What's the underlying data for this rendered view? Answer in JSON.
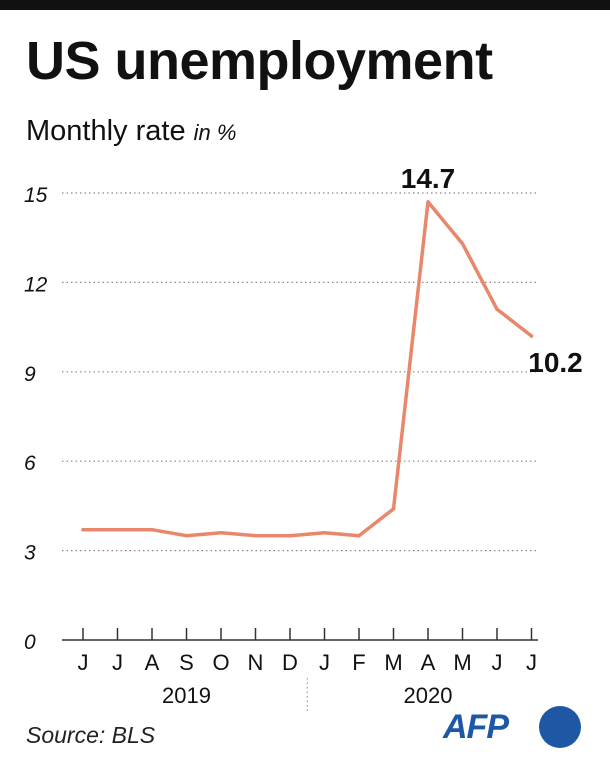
{
  "header": {
    "title": "US unemployment",
    "subtitle": "Monthly rate",
    "unit": "in %"
  },
  "footer": {
    "source": "Source: BLS",
    "logo": "AFP"
  },
  "colors": {
    "line": "#e8876b",
    "text": "#111111",
    "grid": "#888888",
    "axis": "#333333",
    "logo": "#1e57a4"
  },
  "chart_data": {
    "type": "line",
    "title": "US unemployment",
    "subtitle": "Monthly rate in %",
    "categories": [
      "J",
      "J",
      "A",
      "S",
      "O",
      "N",
      "D",
      "J",
      "F",
      "M",
      "A",
      "M",
      "J",
      "J"
    ],
    "year_groups": [
      {
        "label": "2019",
        "from_index": 0,
        "to_index": 6
      },
      {
        "label": "2020",
        "from_index": 7,
        "to_index": 13
      }
    ],
    "series": [
      {
        "values": [
          3.7,
          3.7,
          3.7,
          3.5,
          3.6,
          3.5,
          3.5,
          3.6,
          3.5,
          4.4,
          14.7,
          13.3,
          11.1,
          10.2
        ]
      }
    ],
    "annotations": [
      {
        "index": 10,
        "label": "14.7"
      },
      {
        "index": 13,
        "label": "10.2"
      }
    ],
    "yticks": [
      "0",
      "3",
      "6",
      "9",
      "12",
      "15"
    ],
    "ylim": [
      0,
      15
    ],
    "grid": "horizontal-dotted",
    "xlabel": "",
    "ylabel": ""
  }
}
